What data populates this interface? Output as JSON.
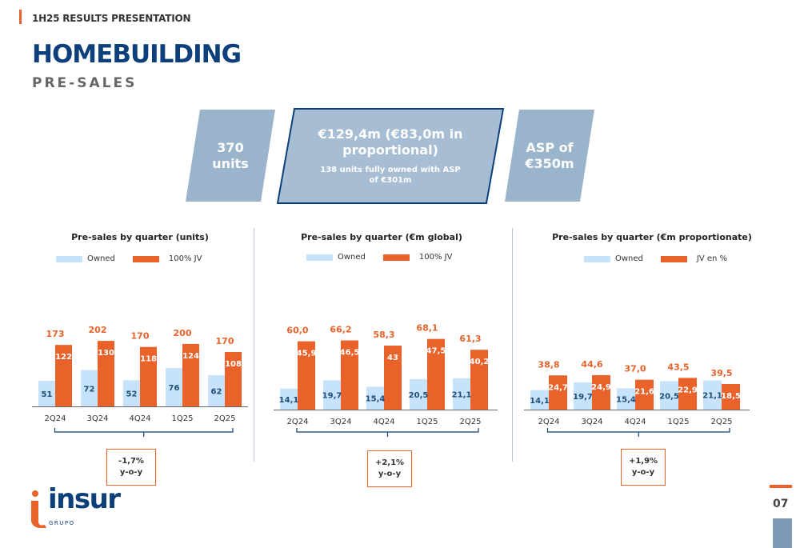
{
  "header": {
    "top_label": "1H25 RESULTS PRESENTATION",
    "title": "HOMEBUILDING",
    "subtitle": "PRE-SALES"
  },
  "kpis": {
    "units": {
      "line1": "370",
      "line2": "units"
    },
    "value": {
      "line1": "€129,4m (€83,0m in",
      "line2": "proportional)",
      "note1": "138 units fully owned with ASP",
      "note2": "of €301m"
    },
    "asp": {
      "line1": "ASP of",
      "line2": "€350m"
    }
  },
  "colors": {
    "owned": "#c7e2fb",
    "jv": "#e8622a",
    "accent": "#e8622a",
    "navy": "#0d3f7a",
    "kpi_fill": "#9ab4cc",
    "owned_text": "#1f4e79"
  },
  "logo": {
    "name": "insur",
    "sub": "GRUPO"
  },
  "page_number": "07",
  "chart_data": [
    {
      "type": "bar",
      "stacking": "grouped",
      "title": "Pre-sales by quarter (units)",
      "categories": [
        "2Q24",
        "3Q24",
        "4Q24",
        "1Q25",
        "2Q25"
      ],
      "series": [
        {
          "name": "Owned",
          "values": [
            51,
            72,
            52,
            76,
            62
          ],
          "labels": [
            "51",
            "72",
            "52",
            "76",
            "62"
          ]
        },
        {
          "name": "100% JV",
          "values": [
            122,
            130,
            118,
            124,
            108
          ],
          "labels": [
            "122",
            "130",
            "118",
            "124",
            "108"
          ]
        }
      ],
      "totals": [
        173,
        202,
        170,
        200,
        170
      ],
      "total_labels": [
        "173",
        "202",
        "170",
        "200",
        "170"
      ],
      "legend_position": "top",
      "yoy_line1": "-1,7%",
      "yoy_line2": "y-o-y"
    },
    {
      "type": "bar",
      "stacking": "grouped",
      "title": "Pre-sales by quarter (€m global)",
      "categories": [
        "2Q24",
        "3Q24",
        "4Q24",
        "1Q25",
        "2Q25"
      ],
      "series": [
        {
          "name": "Owned",
          "values": [
            14.1,
            19.7,
            15.4,
            20.5,
            21.1
          ],
          "labels": [
            "14,1",
            "19,7",
            "15,4",
            "20,5",
            "21,1"
          ]
        },
        {
          "name": "100% JV",
          "values": [
            45.9,
            46.5,
            43,
            47.5,
            40.2
          ],
          "labels": [
            "45,9",
            "46,5",
            "43",
            "47,5",
            "40,2"
          ]
        }
      ],
      "totals": [
        60.0,
        66.2,
        58.3,
        68.1,
        61.3
      ],
      "total_labels": [
        "60,0",
        "66,2",
        "58,3",
        "68,1",
        "61,3"
      ],
      "legend_position": "top",
      "yoy_line1": "+2,1%",
      "yoy_line2": "y-o-y"
    },
    {
      "type": "bar",
      "stacking": "grouped",
      "title": "Pre-sales by quarter (€m proportionate)",
      "categories": [
        "2Q24",
        "3Q24",
        "4Q24",
        "1Q25",
        "2Q25"
      ],
      "series": [
        {
          "name": "Owned",
          "values": [
            14.1,
            19.7,
            15.4,
            20.5,
            21.1
          ],
          "labels": [
            "14,1",
            "19,7",
            "15,4",
            "20,5",
            "21,1"
          ]
        },
        {
          "name": "JV en %",
          "values": [
            24.7,
            24.9,
            21.6,
            22.9,
            18.5
          ],
          "labels": [
            "24,7",
            "24,9",
            "21,6",
            "22,9",
            "18,5"
          ]
        }
      ],
      "totals": [
        38.8,
        44.6,
        37.0,
        43.5,
        39.5
      ],
      "total_labels": [
        "38,8",
        "44,6",
        "37,0",
        "43,5",
        "39,5"
      ],
      "legend_position": "top",
      "yoy_line1": "+1,9%",
      "yoy_line2": "y-o-y"
    }
  ]
}
